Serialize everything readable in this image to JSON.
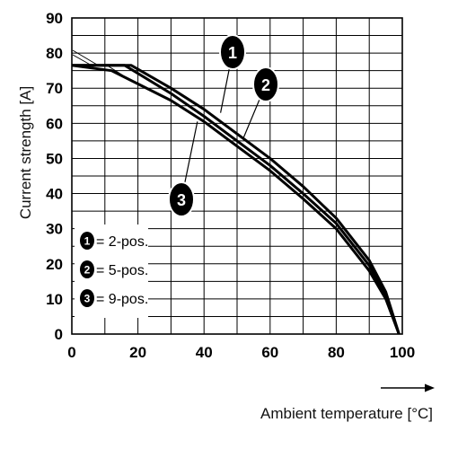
{
  "chart_data": {
    "type": "line",
    "xlabel": "Ambient temperature [°C]",
    "ylabel": "Current strength [A]",
    "xlim": [
      0,
      100
    ],
    "ylim": [
      0,
      90
    ],
    "x_ticks": [
      "0",
      "20",
      "40",
      "60",
      "80",
      "100"
    ],
    "y_ticks": [
      "0",
      "10",
      "20",
      "30",
      "40",
      "50",
      "60",
      "70",
      "80",
      "90"
    ],
    "grid": true,
    "legend_position": "bottom-left",
    "legend": [
      {
        "marker": "1",
        "text": "= 2-pos."
      },
      {
        "marker": "2",
        "text": "= 5-pos."
      },
      {
        "marker": "3",
        "text": "= 9-pos."
      }
    ],
    "series": [
      {
        "marker": "1",
        "x": [
          0,
          18,
          30,
          40,
          50,
          60,
          70,
          80,
          90,
          95,
          99
        ],
        "y": [
          76.5,
          76.5,
          70,
          64,
          57,
          50,
          42,
          33,
          21,
          12,
          0
        ]
      },
      {
        "marker": "2",
        "x": [
          0,
          16,
          30,
          40,
          50,
          60,
          70,
          80,
          90,
          95,
          99
        ],
        "y": [
          76.5,
          76.5,
          68.5,
          62,
          55,
          48,
          40,
          31.5,
          19.5,
          11,
          0
        ]
      },
      {
        "marker": "3",
        "x": [
          0,
          12,
          30,
          40,
          50,
          60,
          70,
          80,
          90,
          95,
          99
        ],
        "y": [
          76.5,
          75,
          66.5,
          60.5,
          53.5,
          46.5,
          38.5,
          30,
          18,
          10,
          0
        ]
      }
    ],
    "callouts": [
      {
        "marker": "1",
        "at": [
          45,
          63
        ]
      },
      {
        "marker": "2",
        "at": [
          52,
          56
        ]
      },
      {
        "marker": "3",
        "at": [
          38,
          60.5
        ]
      }
    ]
  }
}
